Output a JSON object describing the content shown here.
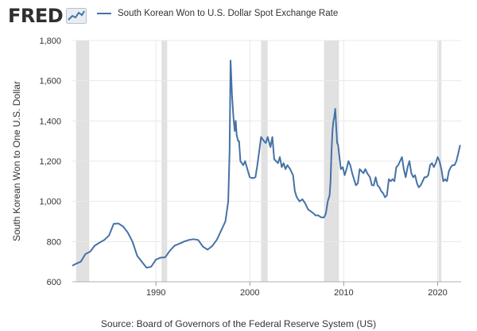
{
  "brand": {
    "name": "FRED",
    "icon": "trend-line-icon"
  },
  "source_text": "Source: Board of Governors of the Federal Reserve System (US)",
  "colors": {
    "series": "#4572a7",
    "recession": "#e1e1e1",
    "grid": "#e8e8e8",
    "text": "#333333"
  },
  "chart_data": {
    "type": "line",
    "title": "South Korean Won to U.S. Dollar Spot Exchange Rate",
    "xlabel": "",
    "ylabel": "South Korean Won to One U.S. Dollar",
    "xlim": [
      1981.1,
      2022.5
    ],
    "ylim": [
      600,
      1800
    ],
    "yticks": [
      600,
      800,
      1000,
      1200,
      1400,
      1600,
      1800
    ],
    "ytick_labels": [
      "600",
      "800",
      "1,000",
      "1,200",
      "1,400",
      "1,600",
      "1,800"
    ],
    "xticks": [
      1990,
      2000,
      2010,
      2020
    ],
    "xtick_labels": [
      "1990",
      "2000",
      "2010",
      "2020"
    ],
    "grid": true,
    "legend": "top",
    "recessions": [
      [
        1981.5,
        1982.9
      ],
      [
        1990.6,
        1991.2
      ],
      [
        2001.2,
        2001.9
      ],
      [
        2007.9,
        2009.5
      ],
      [
        2020.1,
        2020.4
      ]
    ],
    "series": [
      {
        "name": "South Korean Won to U.S. Dollar Spot Exchange Rate",
        "x": [
          1981.1,
          1981.5,
          1982.0,
          1982.5,
          1983.0,
          1983.5,
          1984.0,
          1984.5,
          1985.0,
          1985.5,
          1986.0,
          1986.5,
          1987.0,
          1987.5,
          1988.0,
          1988.5,
          1989.0,
          1989.5,
          1990.0,
          1990.5,
          1991.0,
          1991.5,
          1992.0,
          1992.5,
          1993.0,
          1993.5,
          1994.0,
          1994.5,
          1995.0,
          1995.5,
          1996.0,
          1996.5,
          1997.0,
          1997.4,
          1997.7,
          1997.85,
          1997.95,
          1998.0,
          1998.1,
          1998.25,
          1998.4,
          1998.5,
          1998.6,
          1998.75,
          1998.85,
          1999.0,
          1999.3,
          1999.5,
          1999.8,
          2000.0,
          2000.3,
          2000.6,
          2000.8,
          2001.0,
          2001.2,
          2001.5,
          2001.7,
          2001.9,
          2002.2,
          2002.4,
          2002.6,
          2002.8,
          2003.0,
          2003.2,
          2003.4,
          2003.6,
          2003.8,
          2004.0,
          2004.3,
          2004.6,
          2004.8,
          2005.0,
          2005.3,
          2005.6,
          2005.9,
          2006.2,
          2006.5,
          2006.8,
          2007.0,
          2007.3,
          2007.6,
          2007.9,
          2008.1,
          2008.3,
          2008.5,
          2008.6,
          2008.7,
          2008.8,
          2008.9,
          2009.0,
          2009.1,
          2009.2,
          2009.3,
          2009.4,
          2009.5,
          2009.7,
          2009.9,
          2010.1,
          2010.3,
          2010.5,
          2010.7,
          2010.9,
          2011.1,
          2011.3,
          2011.5,
          2011.7,
          2011.9,
          2012.1,
          2012.3,
          2012.5,
          2012.8,
          2013.0,
          2013.2,
          2013.4,
          2013.6,
          2013.8,
          2014.0,
          2014.2,
          2014.4,
          2014.6,
          2014.8,
          2015.0,
          2015.2,
          2015.4,
          2015.6,
          2015.8,
          2016.0,
          2016.2,
          2016.4,
          2016.6,
          2016.8,
          2017.0,
          2017.2,
          2017.4,
          2017.6,
          2017.8,
          2018.0,
          2018.2,
          2018.4,
          2018.6,
          2018.8,
          2019.0,
          2019.2,
          2019.4,
          2019.6,
          2019.8,
          2020.0,
          2020.2,
          2020.4,
          2020.6,
          2020.8,
          2021.0,
          2021.2,
          2021.4,
          2021.6,
          2021.8,
          2022.0,
          2022.2,
          2022.4
        ],
        "values": [
          680,
          690,
          700,
          738,
          750,
          780,
          795,
          808,
          830,
          888,
          890,
          875,
          845,
          800,
          730,
          700,
          670,
          675,
          710,
          720,
          722,
          755,
          780,
          790,
          800,
          808,
          812,
          808,
          775,
          760,
          778,
          810,
          860,
          900,
          1000,
          1250,
          1700,
          1650,
          1530,
          1420,
          1350,
          1400,
          1330,
          1300,
          1300,
          1200,
          1180,
          1200,
          1150,
          1120,
          1115,
          1120,
          1180,
          1250,
          1320,
          1300,
          1290,
          1320,
          1270,
          1320,
          1210,
          1200,
          1190,
          1220,
          1170,
          1190,
          1160,
          1180,
          1160,
          1130,
          1050,
          1020,
          1000,
          1010,
          990,
          960,
          950,
          940,
          930,
          930,
          920,
          920,
          940,
          1000,
          1030,
          1100,
          1250,
          1350,
          1400,
          1420,
          1460,
          1370,
          1290,
          1280,
          1240,
          1160,
          1170,
          1130,
          1160,
          1200,
          1180,
          1140,
          1110,
          1080,
          1090,
          1160,
          1150,
          1140,
          1160,
          1140,
          1120,
          1080,
          1080,
          1120,
          1080,
          1070,
          1050,
          1040,
          1020,
          1030,
          1110,
          1100,
          1110,
          1100,
          1170,
          1180,
          1200,
          1220,
          1160,
          1120,
          1170,
          1200,
          1140,
          1120,
          1130,
          1090,
          1070,
          1080,
          1100,
          1120,
          1120,
          1130,
          1180,
          1190,
          1170,
          1190,
          1220,
          1200,
          1160,
          1100,
          1110,
          1100,
          1150,
          1170,
          1180,
          1180,
          1200,
          1240,
          1280
        ]
      }
    ]
  }
}
